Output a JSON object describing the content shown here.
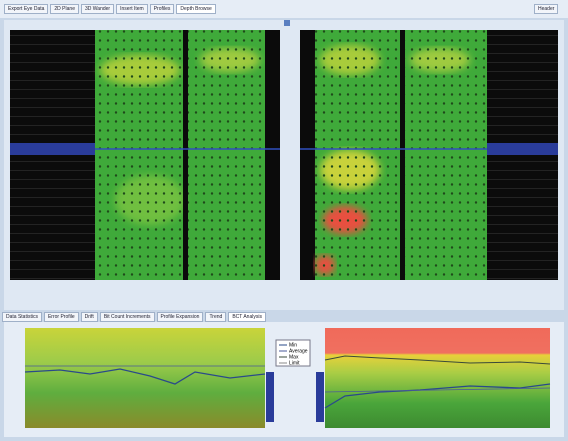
{
  "toolbar": {
    "tabs": [
      "Export Eye Data",
      "2D Plane",
      "3D Wander",
      "Insert Item",
      "Profiles",
      "Depth Browse"
    ],
    "right_button": "Header"
  },
  "bottom_tabs": [
    "Data Statistics",
    "Error Profile",
    "Drift",
    "Bit Count Increments",
    "Profile Expansion",
    "Trend",
    "BCT Analysis"
  ],
  "legend": [
    "Min",
    "Average",
    "Max",
    "Limit"
  ]
}
